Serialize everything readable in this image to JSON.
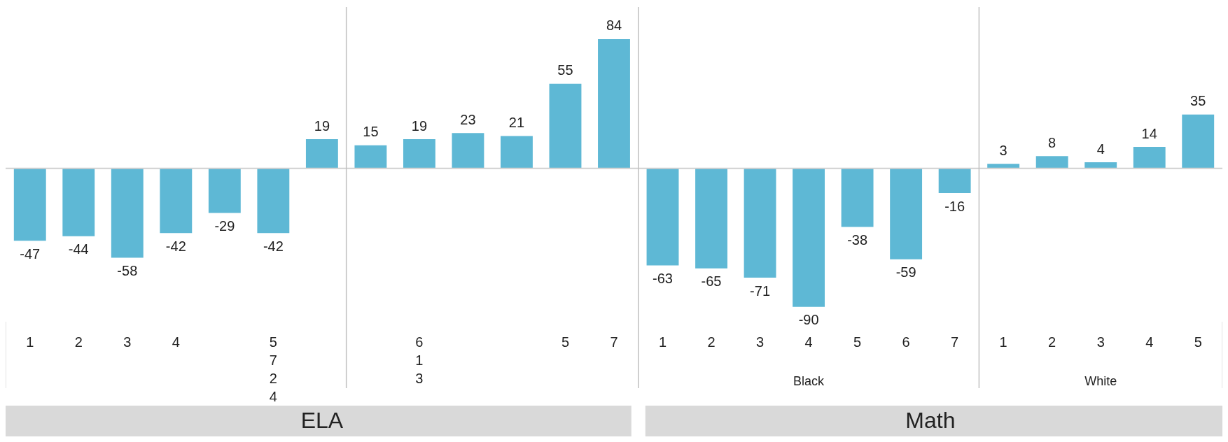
{
  "chart_data": {
    "type": "bar",
    "categories": [
      "1",
      "2",
      "3",
      "4",
      null,
      "5724",
      null,
      null,
      "613",
      null,
      null,
      "5",
      "7",
      "1",
      "2",
      "3",
      "4",
      "5",
      "6",
      "7",
      "1",
      "2",
      "3",
      "4",
      "5"
    ],
    "values": [
      -47,
      -44,
      -58,
      -42,
      -29,
      -42,
      19,
      15,
      19,
      23,
      21,
      55,
      84,
      -63,
      -65,
      -71,
      -90,
      -38,
      -59,
      -16,
      3,
      8,
      4,
      14,
      35
    ],
    "color": "#5eb8d5",
    "data_labels": true,
    "annotations": [
      "Black",
      "White",
      "ELA",
      "Math"
    ]
  }
}
